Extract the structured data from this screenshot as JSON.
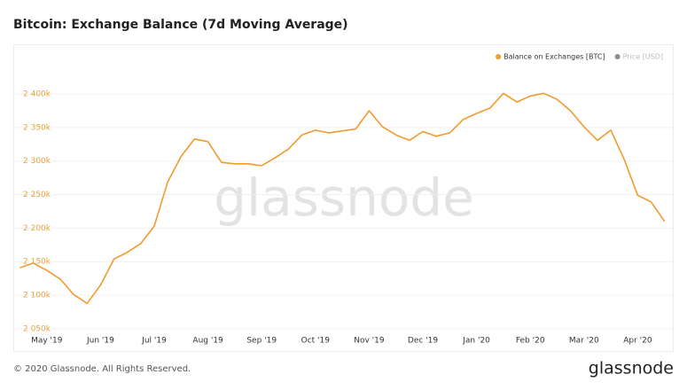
{
  "chart_data": {
    "type": "line",
    "title": "Bitcoin: Exchange Balance (7d Moving Average)",
    "watermark": "glassnode",
    "footer": "© 2020 Glassnode. All Rights Reserved.",
    "logo": "glassnode",
    "categories": [
      null,
      null,
      "May '19",
      null,
      null,
      null,
      "Jun '19",
      null,
      null,
      null,
      "Jul '19",
      null,
      null,
      null,
      "Aug '19",
      null,
      null,
      null,
      "Sep '19",
      null,
      null,
      null,
      "Oct '19",
      null,
      null,
      null,
      "Nov '19",
      null,
      null,
      null,
      "Dec '19",
      null,
      null,
      null,
      "Jan '20",
      null,
      null,
      null,
      "Feb '20",
      null,
      null,
      null,
      "Mar '20",
      null,
      null,
      null,
      "Apr '20",
      null,
      null
    ],
    "series": [
      {
        "name": "Balance on Exchanges [BTC]",
        "color": "#f29a2e",
        "values": [
          2141000,
          2148000,
          2137000,
          2124000,
          2101000,
          2088000,
          2115000,
          2154000,
          2164000,
          2177000,
          2203000,
          2269000,
          2307000,
          2333000,
          2329000,
          2298000,
          2296000,
          2296000,
          2293000,
          2305000,
          2318000,
          2339000,
          2346000,
          2342000,
          2345000,
          2348000,
          2375000,
          2351000,
          2339000,
          2331000,
          2344000,
          2337000,
          2342000,
          2362000,
          2371000,
          2379000,
          2401000,
          2388000,
          2397000,
          2401000,
          2392000,
          2375000,
          2351000,
          2331000,
          2346000,
          2302000,
          2249000,
          2239000,
          2210000
        ]
      }
    ],
    "inactive_legend": {
      "name": "Price [USD]",
      "color": "#8c8c8c"
    },
    "ylim": [
      2038000,
      2445000
    ],
    "yticks": [
      {
        "value": 2050000,
        "label": "2 050k"
      },
      {
        "value": 2100000,
        "label": "2 100k"
      },
      {
        "value": 2150000,
        "label": "2 150k"
      },
      {
        "value": 2200000,
        "label": "2 200k"
      },
      {
        "value": 2250000,
        "label": "2 250k"
      },
      {
        "value": 2300000,
        "label": "2 300k"
      },
      {
        "value": 2350000,
        "label": "2 350k"
      },
      {
        "value": 2400000,
        "label": "2 400k"
      }
    ],
    "grid": true,
    "legend_position": "top-right"
  }
}
